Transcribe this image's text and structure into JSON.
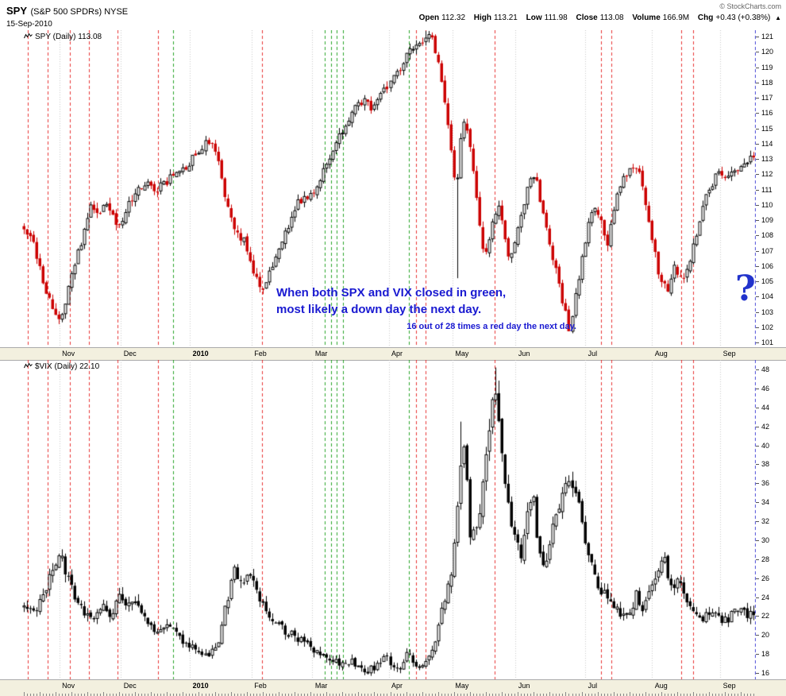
{
  "header": {
    "symbol": "SPY",
    "symbol_desc": "(S&P 500 SPDRs) NYSE",
    "date": "15-Sep-2010",
    "copyright": "© StockCharts.com",
    "quote": {
      "open_label": "Open",
      "open": "112.32",
      "high_label": "High",
      "high": "113.21",
      "low_label": "Low",
      "low": "111.98",
      "close_label": "Close",
      "close": "113.08",
      "volume_label": "Volume",
      "volume": "166.9M",
      "chg_label": "Chg",
      "chg": "+0.43 (+0.38%)",
      "chg_arrow": "▲"
    }
  },
  "annotations": {
    "line1": "When both SPX and VIX closed in green,",
    "line2": "most likely a down day the next day.",
    "line3": "16 out of 28 times a red day the next day.",
    "question_mark": "?"
  },
  "colors": {
    "signal_red": "#e83434",
    "signal_green": "#2aa42a",
    "current_day_line": "#5050d8",
    "gridline": "#c9c9c9",
    "annotation_blue": "#1a1ad1",
    "question_blue": "#2233cc",
    "axis_strip_bg": "#f3f0df",
    "up_candle": "#000000",
    "down_candle_spy": "#cc0000",
    "down_candle_vix": "#000000"
  },
  "chart_data": [
    {
      "type": "candlestick",
      "symbol": "SPY",
      "label": "SPY (Daily) 113.08",
      "timeframe": "Daily",
      "last_close": 113.08,
      "ylim": [
        101,
        121
      ],
      "yticks": [
        121,
        120,
        119,
        118,
        117,
        116,
        115,
        114,
        113,
        112,
        111,
        110,
        109,
        108,
        107,
        106,
        105,
        104,
        103,
        102,
        101
      ],
      "num_candles": 230,
      "colors": {
        "up": "#000000",
        "down": "#cc0000"
      },
      "months": [
        {
          "label": "Nov",
          "f": 0.051
        },
        {
          "label": "Dec",
          "f": 0.135
        },
        {
          "label": "2010",
          "f": 0.229,
          "bold": true
        },
        {
          "label": "Feb",
          "f": 0.313
        },
        {
          "label": "Mar",
          "f": 0.396
        },
        {
          "label": "Apr",
          "f": 0.5
        },
        {
          "label": "May",
          "f": 0.587
        },
        {
          "label": "Jun",
          "f": 0.673
        },
        {
          "label": "Jul",
          "f": 0.768
        },
        {
          "label": "Aug",
          "f": 0.859
        },
        {
          "label": "Sep",
          "f": 0.952
        }
      ],
      "signals_red": [
        0.008,
        0.035,
        0.065,
        0.091,
        0.13,
        0.186,
        0.327,
        0.537,
        0.55,
        0.645,
        0.789,
        0.804,
        0.899,
        0.915
      ],
      "signals_green": [
        0.206,
        0.413,
        0.421,
        0.429,
        0.438,
        0.528
      ],
      "current_day_f": 1.0,
      "wick_events": [
        {
          "f": 0.594,
          "low": 105.2
        },
        {
          "f": 0.552,
          "high": 121.4
        }
      ],
      "anchors": [
        [
          0,
          108.5
        ],
        [
          0.012,
          107.5
        ],
        [
          0.025,
          105.3
        ],
        [
          0.038,
          103.2
        ],
        [
          0.048,
          102.3
        ],
        [
          0.058,
          103.8
        ],
        [
          0.07,
          106.3
        ],
        [
          0.082,
          108
        ],
        [
          0.092,
          109.8
        ],
        [
          0.102,
          109.2
        ],
        [
          0.112,
          110.3
        ],
        [
          0.122,
          109.3
        ],
        [
          0.13,
          108.7
        ],
        [
          0.142,
          109.8
        ],
        [
          0.155,
          110.8
        ],
        [
          0.168,
          111.3
        ],
        [
          0.182,
          111
        ],
        [
          0.195,
          111.5
        ],
        [
          0.21,
          112
        ],
        [
          0.228,
          112.8
        ],
        [
          0.24,
          113.5
        ],
        [
          0.25,
          114.3
        ],
        [
          0.26,
          113.8
        ],
        [
          0.27,
          112
        ],
        [
          0.28,
          109.5
        ],
        [
          0.29,
          108
        ],
        [
          0.3,
          107.8
        ],
        [
          0.311,
          106.3
        ],
        [
          0.32,
          104.8
        ],
        [
          0.328,
          104.2
        ],
        [
          0.338,
          105.8
        ],
        [
          0.35,
          107.2
        ],
        [
          0.362,
          108.5
        ],
        [
          0.375,
          110.2
        ],
        [
          0.388,
          110.5
        ],
        [
          0.398,
          111
        ],
        [
          0.41,
          112.2
        ],
        [
          0.422,
          113.5
        ],
        [
          0.435,
          114.8
        ],
        [
          0.448,
          115.8
        ],
        [
          0.458,
          116.5
        ],
        [
          0.468,
          116.8
        ],
        [
          0.478,
          116.3
        ],
        [
          0.49,
          117.2
        ],
        [
          0.5,
          117.8
        ],
        [
          0.512,
          118.8
        ],
        [
          0.525,
          119.8
        ],
        [
          0.538,
          120.3
        ],
        [
          0.55,
          121
        ],
        [
          0.56,
          120.7
        ],
        [
          0.57,
          119
        ],
        [
          0.578,
          116
        ],
        [
          0.585,
          113.5
        ],
        [
          0.592,
          110.8
        ],
        [
          0.598,
          114.5
        ],
        [
          0.604,
          115.8
        ],
        [
          0.612,
          113.5
        ],
        [
          0.62,
          110.5
        ],
        [
          0.628,
          107.3
        ],
        [
          0.635,
          106.8
        ],
        [
          0.643,
          109
        ],
        [
          0.65,
          110.3
        ],
        [
          0.658,
          107.8
        ],
        [
          0.666,
          106.2
        ],
        [
          0.675,
          108
        ],
        [
          0.684,
          110
        ],
        [
          0.693,
          111.5
        ],
        [
          0.7,
          112
        ],
        [
          0.708,
          110.3
        ],
        [
          0.716,
          108.3
        ],
        [
          0.724,
          106.8
        ],
        [
          0.732,
          105.3
        ],
        [
          0.74,
          103.3
        ],
        [
          0.747,
          101.8
        ],
        [
          0.755,
          103.8
        ],
        [
          0.764,
          106.3
        ],
        [
          0.773,
          108.8
        ],
        [
          0.782,
          110
        ],
        [
          0.79,
          108.8
        ],
        [
          0.798,
          107.2
        ],
        [
          0.807,
          109.3
        ],
        [
          0.816,
          111.3
        ],
        [
          0.825,
          112
        ],
        [
          0.835,
          112.5
        ],
        [
          0.843,
          112
        ],
        [
          0.851,
          110.3
        ],
        [
          0.859,
          108.3
        ],
        [
          0.867,
          106
        ],
        [
          0.875,
          104.8
        ],
        [
          0.882,
          104.3
        ],
        [
          0.89,
          106.3
        ],
        [
          0.897,
          105.3
        ],
        [
          0.904,
          104.9
        ],
        [
          0.912,
          106.2
        ],
        [
          0.922,
          108.3
        ],
        [
          0.932,
          110.2
        ],
        [
          0.942,
          111.3
        ],
        [
          0.952,
          112.3
        ],
        [
          0.963,
          111.8
        ],
        [
          0.975,
          112.4
        ],
        [
          1,
          113.1
        ]
      ]
    },
    {
      "type": "candlestick",
      "symbol": "$VIX",
      "label": "$VIX (Daily) 22.10",
      "timeframe": "Daily",
      "last_close": 22.1,
      "ylim": [
        16,
        48
      ],
      "yticks": [
        48,
        46,
        44,
        42,
        40,
        38,
        36,
        34,
        32,
        30,
        28,
        26,
        24,
        22,
        20,
        18,
        16
      ],
      "num_candles": 230,
      "colors": {
        "up": "#000000",
        "down": "#000000"
      },
      "months": [
        {
          "label": "Nov",
          "f": 0.051
        },
        {
          "label": "Dec",
          "f": 0.135
        },
        {
          "label": "2010",
          "f": 0.229,
          "bold": true
        },
        {
          "label": "Feb",
          "f": 0.313
        },
        {
          "label": "Mar",
          "f": 0.396
        },
        {
          "label": "Apr",
          "f": 0.5
        },
        {
          "label": "May",
          "f": 0.587
        },
        {
          "label": "Jun",
          "f": 0.673
        },
        {
          "label": "Jul",
          "f": 0.768
        },
        {
          "label": "Aug",
          "f": 0.859
        },
        {
          "label": "Sep",
          "f": 0.952
        }
      ],
      "signals_red": [
        0.008,
        0.035,
        0.065,
        0.091,
        0.13,
        0.186,
        0.327,
        0.537,
        0.55,
        0.645,
        0.789,
        0.804,
        0.899,
        0.915
      ],
      "signals_green": [
        0.206,
        0.413,
        0.421,
        0.429,
        0.438,
        0.528
      ],
      "current_day_f": 1.0,
      "wick_events": [
        {
          "f": 0.645,
          "high": 48.2
        },
        {
          "f": 0.6,
          "high": 42.5
        }
      ],
      "anchors": [
        [
          0,
          23
        ],
        [
          0.012,
          22
        ],
        [
          0.025,
          24
        ],
        [
          0.04,
          27
        ],
        [
          0.048,
          29
        ],
        [
          0.058,
          26.5
        ],
        [
          0.07,
          24
        ],
        [
          0.082,
          22.5
        ],
        [
          0.095,
          22
        ],
        [
          0.108,
          23
        ],
        [
          0.12,
          21.8
        ],
        [
          0.13,
          24.3
        ],
        [
          0.14,
          23
        ],
        [
          0.152,
          24.2
        ],
        [
          0.162,
          22
        ],
        [
          0.175,
          21
        ],
        [
          0.188,
          20.3
        ],
        [
          0.2,
          21.3
        ],
        [
          0.212,
          19.8
        ],
        [
          0.228,
          19
        ],
        [
          0.24,
          18
        ],
        [
          0.252,
          17.6
        ],
        [
          0.265,
          19
        ],
        [
          0.275,
          22.5
        ],
        [
          0.288,
          27.3
        ],
        [
          0.298,
          25
        ],
        [
          0.311,
          26.3
        ],
        [
          0.32,
          24
        ],
        [
          0.332,
          22.5
        ],
        [
          0.345,
          21.3
        ],
        [
          0.358,
          20.3
        ],
        [
          0.372,
          19.8
        ],
        [
          0.385,
          19.3
        ],
        [
          0.398,
          18.3
        ],
        [
          0.41,
          17.6
        ],
        [
          0.422,
          17.2
        ],
        [
          0.435,
          16.9
        ],
        [
          0.448,
          17.3
        ],
        [
          0.46,
          16.6
        ],
        [
          0.472,
          16.3
        ],
        [
          0.485,
          16.8
        ],
        [
          0.495,
          17.8
        ],
        [
          0.505,
          16.5
        ],
        [
          0.515,
          16.2
        ],
        [
          0.525,
          18
        ],
        [
          0.535,
          17
        ],
        [
          0.545,
          16.8
        ],
        [
          0.555,
          18
        ],
        [
          0.565,
          20
        ],
        [
          0.575,
          23.5
        ],
        [
          0.585,
          26.5
        ],
        [
          0.593,
          33
        ],
        [
          0.6,
          40.5
        ],
        [
          0.606,
          37
        ],
        [
          0.612,
          30
        ],
        [
          0.62,
          31.5
        ],
        [
          0.628,
          35
        ],
        [
          0.636,
          40
        ],
        [
          0.645,
          47
        ],
        [
          0.652,
          42
        ],
        [
          0.66,
          36
        ],
        [
          0.668,
          32
        ],
        [
          0.675,
          30
        ],
        [
          0.682,
          28.5
        ],
        [
          0.69,
          33.5
        ],
        [
          0.697,
          35
        ],
        [
          0.705,
          29.5
        ],
        [
          0.712,
          27
        ],
        [
          0.72,
          29.5
        ],
        [
          0.728,
          32.5
        ],
        [
          0.738,
          34.5
        ],
        [
          0.748,
          36.8
        ],
        [
          0.758,
          34
        ],
        [
          0.768,
          30.5
        ],
        [
          0.778,
          27.5
        ],
        [
          0.788,
          25
        ],
        [
          0.798,
          24
        ],
        [
          0.808,
          22.8
        ],
        [
          0.818,
          22
        ],
        [
          0.828,
          21.8
        ],
        [
          0.838,
          24.3
        ],
        [
          0.848,
          22.5
        ],
        [
          0.858,
          25
        ],
        [
          0.868,
          27
        ],
        [
          0.878,
          27.8
        ],
        [
          0.888,
          24.8
        ],
        [
          0.898,
          26.2
        ],
        [
          0.908,
          24
        ],
        [
          0.918,
          22.3
        ],
        [
          0.928,
          21.6
        ],
        [
          0.938,
          22.3
        ],
        [
          0.948,
          21.8
        ],
        [
          0.96,
          21.4
        ],
        [
          0.975,
          22.6
        ],
        [
          1,
          22.1
        ]
      ]
    }
  ]
}
